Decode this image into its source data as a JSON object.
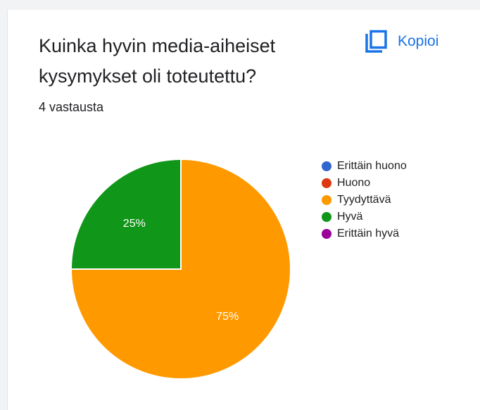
{
  "header": {
    "title": "Kuinka hyvin media-aiheiset kysymykset oli toteutettu?",
    "copy_label": "Kopioi",
    "copy_icon": "copy-icon",
    "response_count": "4 vastausta"
  },
  "colors": {
    "accent": "#1a73e8",
    "series": [
      "#3366cc",
      "#dc3912",
      "#ff9900",
      "#109618",
      "#990099"
    ]
  },
  "chart_data": {
    "type": "pie",
    "categories": [
      "Erittäin huono",
      "Huono",
      "Tyydyttävä",
      "Hyvä",
      "Erittäin hyvä"
    ],
    "values": [
      0,
      0,
      3,
      1,
      0
    ],
    "percent_labels": [
      "",
      "",
      "75%",
      "25%",
      ""
    ],
    "colors": [
      "#3366cc",
      "#dc3912",
      "#ff9900",
      "#109618",
      "#990099"
    ],
    "legend_position": "right"
  }
}
